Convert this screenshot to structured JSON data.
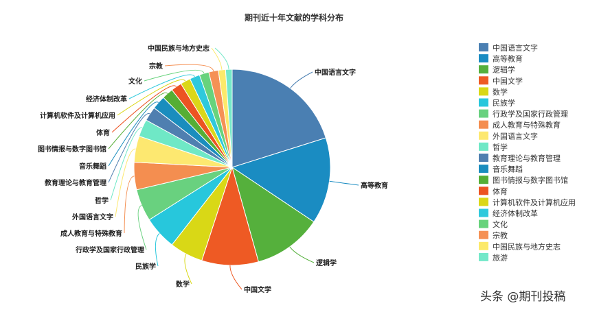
{
  "chart_data": {
    "type": "pie",
    "title": "期刊近十年文献的学科分布",
    "legend_position": "right",
    "slices": [
      {
        "label": "中国语言文字",
        "value": 20.5,
        "color": "#4a7fb2"
      },
      {
        "label": "高等教育",
        "value": 14.5,
        "color": "#1a8cc2"
      },
      {
        "label": "逻辑学",
        "value": 11.5,
        "color": "#55b03c"
      },
      {
        "label": "中国文学",
        "value": 9.5,
        "color": "#ee5a24"
      },
      {
        "label": "数学",
        "value": 5.6,
        "color": "#d9d816"
      },
      {
        "label": "民族学",
        "value": 5.6,
        "color": "#27c7dc"
      },
      {
        "label": "行政学及国家行政管理",
        "value": 5.4,
        "color": "#69d17f"
      },
      {
        "label": "成人教育与特殊教育",
        "value": 4.6,
        "color": "#f48e50"
      },
      {
        "label": "外国语言文字",
        "value": 4.4,
        "color": "#fde870"
      },
      {
        "label": "哲学",
        "value": 2.9,
        "color": "#6fe8c6"
      },
      {
        "label": "教育理论与教育管理",
        "value": 2.4,
        "color": "#4f7fb0"
      },
      {
        "label": "音乐舞蹈",
        "value": 2.3,
        "color": "#1a8dbe"
      },
      {
        "label": "图书情报与数字图书馆",
        "value": 1.9,
        "color": "#55ae35"
      },
      {
        "label": "体育",
        "value": 1.8,
        "color": "#ec5322"
      },
      {
        "label": "计算机软件及计算机应用",
        "value": 1.7,
        "color": "#dbd718"
      },
      {
        "label": "经济体制改革",
        "value": 1.7,
        "color": "#2fc9dc"
      },
      {
        "label": "文化",
        "value": 1.6,
        "color": "#67d37c"
      },
      {
        "label": "宗教",
        "value": 1.6,
        "color": "#f59155"
      },
      {
        "label": "中国民族与地方史志",
        "value": 1.2,
        "color": "#fce96a"
      },
      {
        "label": "旅游",
        "value": 1.1,
        "color": "#74e8c9"
      }
    ]
  },
  "watermark": "头条 @期刊投稿"
}
